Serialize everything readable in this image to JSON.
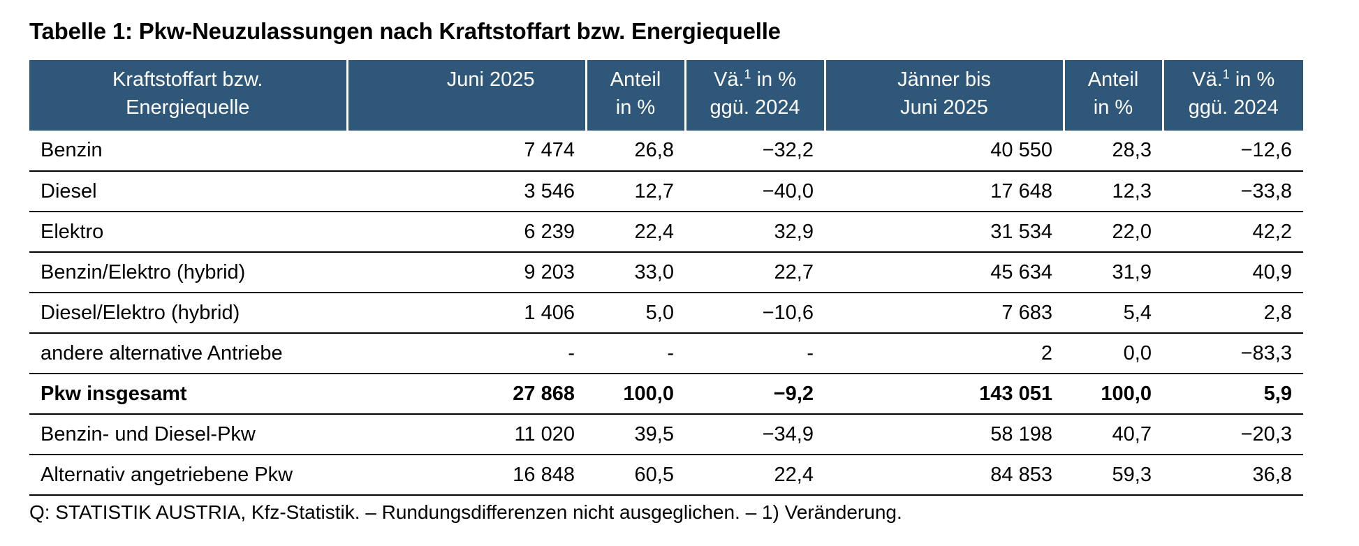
{
  "title": "Tabelle 1: Pkw-Neuzulassungen nach Kraftstoffart bzw. Energiequelle",
  "header": {
    "col_fuel": {
      "line1": "Kraftstoffart bzw.",
      "line2": "Energiequelle"
    },
    "col_month": {
      "line1": "Juni 2025"
    },
    "col_share_month": {
      "line1": "Anteil",
      "line2": "in %"
    },
    "col_change_month": {
      "line1_pre": "Vä.",
      "sup": "1",
      "line1_post": " in %",
      "line2": "ggü. 2024"
    },
    "col_ytd": {
      "line1": "Jänner bis",
      "line2": "Juni 2025"
    },
    "col_share_ytd": {
      "line1": "Anteil",
      "line2": "in %"
    },
    "col_change_ytd": {
      "line1_pre": "Vä.",
      "sup": "1",
      "line1_post": " in %",
      "line2": "ggü. 2024"
    }
  },
  "rows": [
    {
      "label": "Benzin",
      "month": "7 474",
      "share_month": "26,8",
      "change_month": "−32,2",
      "ytd": "40 550",
      "share_ytd": "28,3",
      "change_ytd": "−12,6"
    },
    {
      "label": "Diesel",
      "month": "3 546",
      "share_month": "12,7",
      "change_month": "−40,0",
      "ytd": "17 648",
      "share_ytd": "12,3",
      "change_ytd": "−33,8"
    },
    {
      "label": "Elektro",
      "month": "6 239",
      "share_month": "22,4",
      "change_month": "32,9",
      "ytd": "31 534",
      "share_ytd": "22,0",
      "change_ytd": "42,2"
    },
    {
      "label": "Benzin/Elektro (hybrid)",
      "month": "9 203",
      "share_month": "33,0",
      "change_month": "22,7",
      "ytd": "45 634",
      "share_ytd": "31,9",
      "change_ytd": "40,9"
    },
    {
      "label": "Diesel/Elektro (hybrid)",
      "month": "1 406",
      "share_month": "5,0",
      "change_month": "−10,6",
      "ytd": "7 683",
      "share_ytd": "5,4",
      "change_ytd": "2,8"
    },
    {
      "label": "andere alternative Antriebe",
      "month": "-",
      "share_month": "-",
      "change_month": "-",
      "ytd": "2",
      "share_ytd": "0,0",
      "change_ytd": "−83,3"
    },
    {
      "label": "Pkw insgesamt",
      "month": "27 868",
      "share_month": "100,0",
      "change_month": "−9,2",
      "ytd": "143 051",
      "share_ytd": "100,0",
      "change_ytd": "5,9"
    },
    {
      "label": "Benzin- und Diesel-Pkw",
      "month": "11 020",
      "share_month": "39,5",
      "change_month": "−34,9",
      "ytd": "58 198",
      "share_ytd": "40,7",
      "change_ytd": "−20,3"
    },
    {
      "label": "Alternativ angetriebene Pkw",
      "month": "16 848",
      "share_month": "60,5",
      "change_month": "22,4",
      "ytd": "84 853",
      "share_ytd": "59,3",
      "change_ytd": "36,8"
    }
  ],
  "source": "Q: STATISTIK AUSTRIA, Kfz-Statistik. – Rundungsdifferenzen nicht ausgeglichen. – 1) Veränderung.",
  "colors": {
    "header_bg": "#2f5779",
    "header_text": "#ffffff",
    "rule": "#000000"
  }
}
